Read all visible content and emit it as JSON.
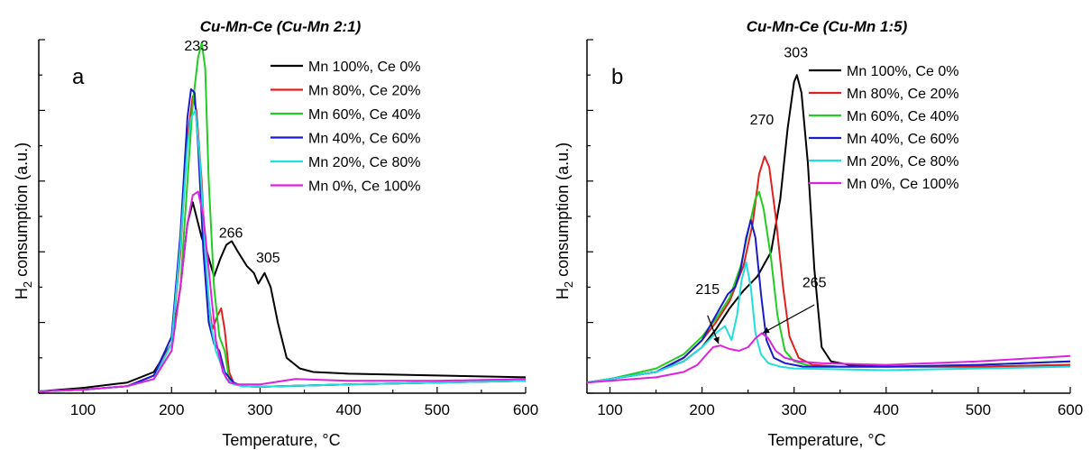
{
  "chart_data": [
    {
      "type": "line",
      "panel_letter": "a",
      "title": "Cu-Mn-Ce (Cu-Mn 2:1)",
      "xlabel": "Temperature, °C",
      "ylabel": "H2 consumption (a.u.)",
      "xlim": [
        50,
        600
      ],
      "ylim": [
        0,
        100
      ],
      "xticks": [
        100,
        200,
        300,
        400,
        500,
        600
      ],
      "legend_position": "top-right",
      "annotations": [
        {
          "text": "233",
          "x": 228,
          "y": 97
        },
        {
          "text": "266",
          "x": 267,
          "y": 44
        },
        {
          "text": "305",
          "x": 309,
          "y": 37
        }
      ],
      "series": [
        {
          "name": "Mn 100%, Ce 0%",
          "color": "#000000",
          "x": [
            50,
            100,
            150,
            180,
            200,
            210,
            218,
            224,
            228,
            234,
            240,
            248,
            255,
            262,
            268,
            275,
            285,
            293,
            298,
            305,
            312,
            320,
            330,
            345,
            360,
            400,
            500,
            600
          ],
          "y": [
            0.5,
            1.5,
            3,
            6,
            14,
            30,
            48,
            54,
            50,
            44,
            40,
            33,
            38,
            42,
            43,
            40,
            36,
            34,
            31,
            34,
            30,
            20,
            10,
            7,
            6,
            5.5,
            5,
            4.5
          ]
        },
        {
          "name": "Mn 80%, Ce 20%",
          "color": "#e02020",
          "x": [
            50,
            100,
            150,
            180,
            200,
            210,
            218,
            224,
            228,
            234,
            240,
            246,
            252,
            256,
            260,
            265,
            270,
            280,
            300,
            400,
            500,
            600
          ],
          "y": [
            0.5,
            1,
            2,
            5,
            14,
            40,
            72,
            84,
            80,
            60,
            30,
            18,
            22,
            24,
            18,
            6,
            3,
            2,
            1.8,
            2.5,
            3,
            3.5
          ]
        },
        {
          "name": "Mn 60%, Ce 40%",
          "color": "#22cc22",
          "x": [
            50,
            100,
            150,
            180,
            200,
            210,
            218,
            224,
            230,
            234,
            238,
            242,
            248,
            254,
            260,
            265,
            270,
            280,
            300,
            400,
            500,
            600
          ],
          "y": [
            0.5,
            1,
            2,
            4,
            12,
            30,
            60,
            82,
            95,
            99,
            92,
            60,
            30,
            16,
            12,
            4,
            2.5,
            2,
            1.8,
            2.5,
            3,
            3.5
          ]
        },
        {
          "name": "Mn 40%, Ce 60%",
          "color": "#1a1acc",
          "x": [
            50,
            100,
            150,
            180,
            200,
            210,
            218,
            222,
            226,
            230,
            236,
            242,
            248,
            254,
            260,
            270,
            280,
            300,
            400,
            500,
            600
          ],
          "y": [
            0.5,
            1,
            2,
            5,
            16,
            45,
            78,
            86,
            85,
            70,
            40,
            20,
            14,
            12,
            6,
            3,
            2,
            1.8,
            2.5,
            3,
            3.5
          ]
        },
        {
          "name": "Mn 20%, Ce 80%",
          "color": "#22dddd",
          "x": [
            50,
            100,
            150,
            180,
            200,
            210,
            218,
            222,
            227,
            232,
            238,
            244,
            250,
            256,
            262,
            270,
            280,
            300,
            400,
            500,
            600
          ],
          "y": [
            0.5,
            1,
            2,
            4,
            14,
            42,
            70,
            78,
            80,
            66,
            40,
            20,
            12,
            8,
            4,
            2.5,
            2,
            1.8,
            2.5,
            3,
            3.5
          ]
        },
        {
          "name": "Mn 0%, Ce 100%",
          "color": "#dd22dd",
          "x": [
            50,
            100,
            150,
            180,
            200,
            210,
            218,
            224,
            230,
            236,
            242,
            250,
            258,
            265,
            275,
            300,
            340,
            400,
            500,
            600
          ],
          "y": [
            0.5,
            1,
            2,
            4,
            12,
            30,
            48,
            56,
            57,
            50,
            35,
            15,
            6,
            3,
            2.5,
            2.5,
            4,
            3.5,
            3.5,
            4
          ]
        }
      ]
    },
    {
      "type": "line",
      "panel_letter": "b",
      "title": "Cu-Mn-Ce (Cu-Mn 1:5)",
      "xlabel": "Temperature, °C",
      "ylabel": "H2 consumption (a.u.)",
      "xlim": [
        75,
        600
      ],
      "ylim": [
        0,
        100
      ],
      "xticks": [
        100,
        200,
        300,
        400,
        500,
        600
      ],
      "legend_position": "top-right",
      "annotations": [
        {
          "text": "303",
          "x": 302,
          "y": 95
        },
        {
          "text": "270",
          "x": 265,
          "y": 76
        },
        {
          "text": "215",
          "x": 206,
          "y": 28
        },
        {
          "text": "265",
          "x": 322,
          "y": 30
        }
      ],
      "series": [
        {
          "name": "Mn 100%, Ce 0%",
          "color": "#000000",
          "x": [
            75,
            100,
            150,
            180,
            200,
            215,
            230,
            245,
            260,
            275,
            285,
            293,
            300,
            303,
            308,
            315,
            322,
            330,
            340,
            360,
            400,
            500,
            600
          ],
          "y": [
            3,
            4,
            6,
            9,
            13,
            18,
            24,
            29,
            33,
            40,
            55,
            75,
            88,
            90,
            85,
            65,
            35,
            13,
            9,
            8,
            7.5,
            7.5,
            8
          ]
        },
        {
          "name": "Mn 80%, Ce 20%",
          "color": "#e02020",
          "x": [
            75,
            100,
            150,
            180,
            200,
            215,
            230,
            245,
            255,
            262,
            268,
            273,
            280,
            288,
            295,
            305,
            320,
            350,
            400,
            500,
            600
          ],
          "y": [
            3,
            4,
            6,
            10,
            15,
            20,
            26,
            36,
            48,
            62,
            67,
            64,
            50,
            30,
            16,
            10,
            8,
            7.5,
            7.5,
            7.5,
            8
          ]
        },
        {
          "name": "Mn 60%, Ce 40%",
          "color": "#22cc22",
          "x": [
            75,
            100,
            150,
            180,
            200,
            215,
            230,
            242,
            252,
            258,
            262,
            267,
            275,
            282,
            290,
            300,
            320,
            400,
            500,
            600
          ],
          "y": [
            3,
            4,
            7,
            11,
            16,
            21,
            27,
            36,
            48,
            55,
            57,
            52,
            38,
            22,
            12,
            9,
            7.5,
            7.5,
            8,
            9
          ]
        },
        {
          "name": "Mn 40%, Ce 60%",
          "color": "#1a1acc",
          "x": [
            75,
            100,
            150,
            180,
            200,
            215,
            228,
            236,
            242,
            248,
            253,
            258,
            264,
            270,
            278,
            290,
            310,
            400,
            500,
            600
          ],
          "y": [
            3,
            4,
            6,
            10,
            15,
            22,
            28,
            30,
            35,
            44,
            49,
            44,
            28,
            15,
            10,
            8.5,
            7.5,
            7.5,
            8,
            9
          ]
        },
        {
          "name": "Mn 20%, Ce 80%",
          "color": "#22dddd",
          "x": [
            75,
            100,
            150,
            180,
            200,
            215,
            225,
            232,
            238,
            243,
            248,
            253,
            258,
            264,
            272,
            285,
            300,
            400,
            500,
            600
          ],
          "y": [
            3,
            4,
            6,
            9,
            13,
            17,
            19,
            15,
            22,
            32,
            37,
            30,
            17,
            11,
            8.5,
            7.5,
            7,
            6.5,
            7,
            7.5
          ]
        },
        {
          "name": "Mn 0%, Ce 100%",
          "color": "#dd22dd",
          "x": [
            75,
            100,
            150,
            180,
            195,
            205,
            212,
            220,
            230,
            240,
            250,
            258,
            265,
            272,
            280,
            290,
            305,
            330,
            400,
            500,
            600
          ],
          "y": [
            3,
            3.5,
            4.5,
            6,
            8,
            11,
            13,
            13.5,
            12.5,
            12,
            13,
            15.5,
            17,
            15.5,
            12,
            10,
            9,
            8.5,
            8,
            9,
            10.5
          ]
        }
      ]
    }
  ]
}
